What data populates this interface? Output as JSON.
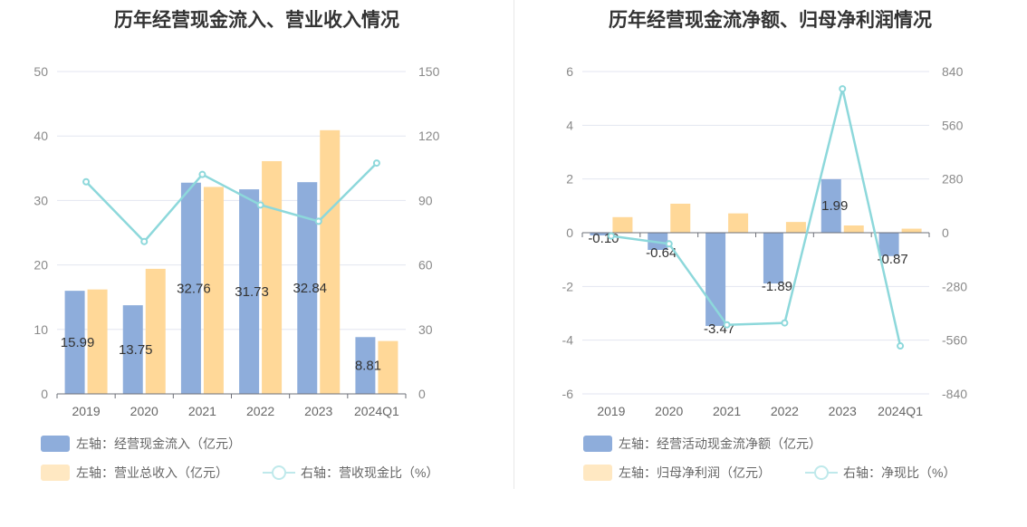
{
  "chart_data": [
    {
      "type": "bar",
      "title": "历年经营现金流入、营业收入情况",
      "categories": [
        "2019",
        "2020",
        "2021",
        "2022",
        "2023",
        "2024Q1"
      ],
      "y_left": {
        "min": 0,
        "max": 50,
        "ticks": [
          "0",
          "10",
          "20",
          "30",
          "40",
          "50"
        ]
      },
      "y_right": {
        "min": 0,
        "max": 150,
        "ticks": [
          "0",
          "30",
          "60",
          "90",
          "120",
          "150"
        ]
      },
      "grid": true,
      "legend_position": "bottom-left",
      "series": [
        {
          "name": "左轴：经营现金流入（亿元）",
          "kind": "bar",
          "axis": "left",
          "color": "#8eaddb",
          "values": [
            15.99,
            13.75,
            32.76,
            31.73,
            32.84,
            8.81
          ],
          "labels": [
            "15.99",
            "13.75",
            "32.76",
            "31.73",
            "32.84",
            "8.81"
          ]
        },
        {
          "name": "左轴：营业总收入（亿元）",
          "kind": "bar",
          "axis": "left",
          "color": "#ffd898",
          "values": [
            16.2,
            19.4,
            32.1,
            36.1,
            40.9,
            8.2
          ]
        },
        {
          "name": "右轴：营收现金比（%）",
          "kind": "line",
          "axis": "right",
          "color": "#8dd8db",
          "values": [
            98.7,
            70.9,
            102.1,
            87.9,
            80.3,
            107.4
          ]
        }
      ]
    },
    {
      "type": "bar",
      "title": "历年经营现金流净额、归母净利润情况",
      "categories": [
        "2019",
        "2020",
        "2021",
        "2022",
        "2023",
        "2024Q1"
      ],
      "y_left": {
        "min": -6,
        "max": 6,
        "ticks": [
          "-6",
          "-4",
          "-2",
          "0",
          "2",
          "4",
          "6"
        ]
      },
      "y_right": {
        "min": -840,
        "max": 840,
        "ticks": [
          "-840",
          "-560",
          "-280",
          "0",
          "280",
          "560",
          "840"
        ]
      },
      "grid": true,
      "legend_position": "bottom-left",
      "series": [
        {
          "name": "左轴：经营活动现金流净额（亿元）",
          "kind": "bar",
          "axis": "left",
          "color": "#8eaddb",
          "values": [
            -0.1,
            -0.64,
            -3.47,
            -1.89,
            1.99,
            -0.87
          ],
          "labels": [
            "-0.10",
            "-0.64",
            "-3.47",
            "-1.89",
            "1.99",
            "-0.87"
          ]
        },
        {
          "name": "左轴：归母净利润（亿元）",
          "kind": "bar",
          "axis": "left",
          "color": "#ffd898",
          "values": [
            0.58,
            1.08,
            0.72,
            0.4,
            0.27,
            0.15
          ]
        },
        {
          "name": "右轴：净现比（%）",
          "kind": "line",
          "axis": "right",
          "color": "#8dd8db",
          "values": [
            -17,
            -58,
            -480,
            -470,
            750,
            -590
          ]
        }
      ]
    }
  ]
}
